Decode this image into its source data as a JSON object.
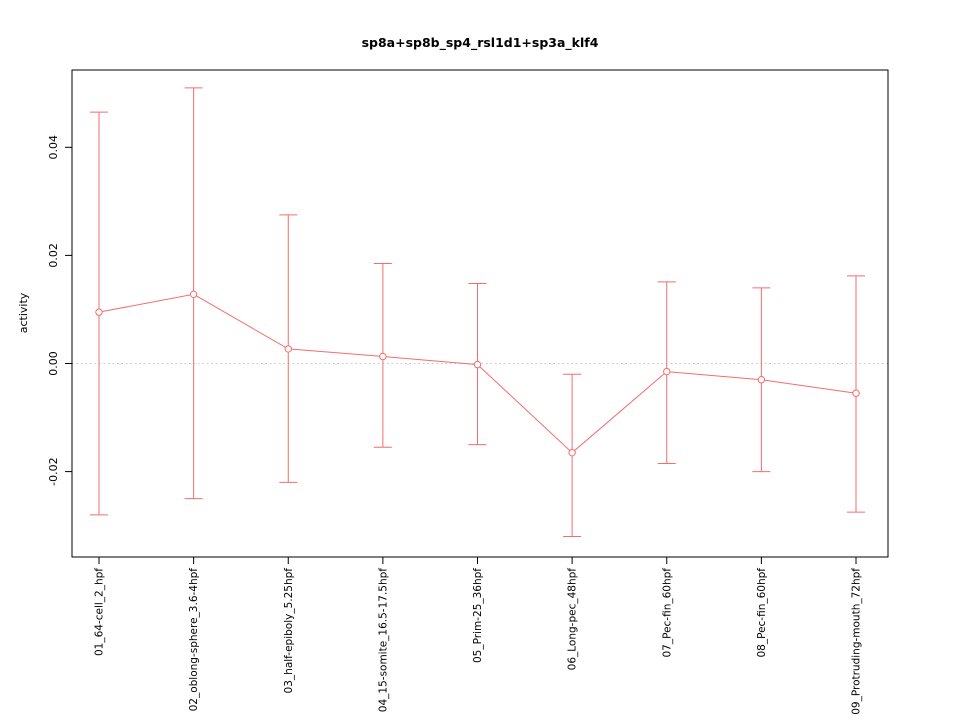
{
  "chart": {
    "title": "sp8a+sp8b_sp4_rsl1d1+sp3a_klf4",
    "ylabel": "activity"
  },
  "chart_data": {
    "type": "line",
    "title": "sp8a+sp8b_sp4_rsl1d1+sp3a_klf4",
    "xlabel": "",
    "ylabel": "activity",
    "categories": [
      "01_64-cell_2_hpf",
      "02_oblong-sphere_3.6-4hpf",
      "03_half-epiboly_5.25hpf",
      "04_15-somite_16.5-17.5hpf",
      "05_Prim-25_36hpf",
      "06_Long-pec_48hpf",
      "07_Pec-fin_60hpf",
      "08_Pec-fin_60hpf",
      "09_Protruding-mouth_72hpf"
    ],
    "series": [
      {
        "name": "activity",
        "values": [
          0.0095,
          0.0128,
          0.0027,
          0.0013,
          -0.0002,
          -0.0165,
          -0.0015,
          -0.003,
          -0.0055
        ],
        "upper": [
          0.0465,
          0.051,
          0.0275,
          0.0185,
          0.0148,
          -0.002,
          0.0151,
          0.014,
          0.0162
        ],
        "lower": [
          -0.028,
          -0.025,
          -0.022,
          -0.0155,
          -0.015,
          -0.032,
          -0.0185,
          -0.02,
          -0.0275
        ]
      }
    ],
    "ylim": [
      -0.0358,
      0.0543
    ],
    "yticks": [
      -0.02,
      0,
      0.02,
      0.04
    ],
    "ytick_labels": [
      "-0.02",
      "0.00",
      "0.02",
      "0.04"
    ],
    "zero_line": true,
    "grid": false,
    "legend_position": "none",
    "marker": "open-circle",
    "error_bars": true,
    "colors": {
      "series": "#f46d6d",
      "zero_line": "#c6c6c6",
      "axis": "#000000",
      "background": "#ffffff"
    }
  }
}
